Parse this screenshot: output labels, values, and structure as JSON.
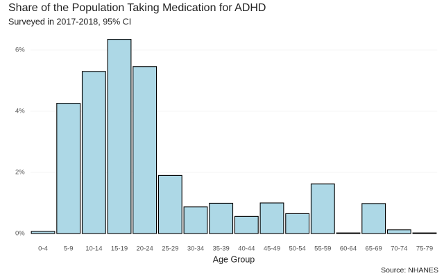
{
  "chart_data": {
    "type": "bar",
    "title": "Share of the Population Taking Medication for ADHD",
    "subtitle": "Surveyed in 2017-2018, 95% CI",
    "x_label": "Age Group",
    "caption": "Source: NHANES",
    "categories": [
      "0-4",
      "5-9",
      "10-14",
      "15-19",
      "20-24",
      "25-29",
      "30-34",
      "35-39",
      "40-44",
      "45-49",
      "50-54",
      "55-59",
      "60-64",
      "65-69",
      "70-74",
      "75-79"
    ],
    "values": [
      0.07,
      4.26,
      5.3,
      6.35,
      5.46,
      1.9,
      0.87,
      0.99,
      0.56,
      1.0,
      0.65,
      1.62,
      0.02,
      0.98,
      0.12,
      0.02
    ],
    "color": "#add8e6",
    "ylim": [
      0,
      6.5
    ],
    "yticks": [
      {
        "value": 0,
        "label": "0%"
      },
      {
        "value": 2,
        "label": "2%"
      },
      {
        "value": 4,
        "label": "4%"
      },
      {
        "value": 6,
        "label": "6%"
      }
    ],
    "grid": true
  }
}
